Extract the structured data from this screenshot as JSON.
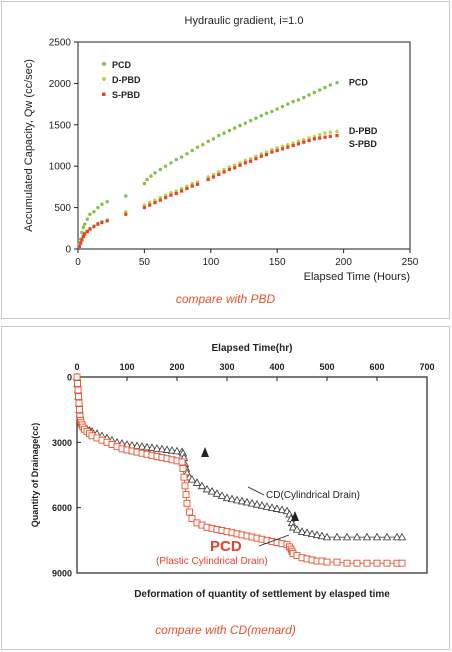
{
  "captions": {
    "top": "compare with PBD",
    "bottom": "compare with CD(menard)"
  },
  "chart_data": [
    {
      "type": "scatter",
      "title": "Hydraulic gradient,  i=1.0",
      "xlabel": "Elapsed Time (Hours)",
      "ylabel": "Accumulated Capacity, Qw  (cc/sec)",
      "xlim": [
        0,
        250
      ],
      "ylim": [
        0,
        2500
      ],
      "xticks": [
        0,
        50,
        100,
        150,
        200,
        250
      ],
      "yticks": [
        0,
        500,
        1000,
        1500,
        2000,
        2500
      ],
      "grid": false,
      "legend": "top-left",
      "series": [
        {
          "name": "PCD",
          "color": "#7cc242",
          "x": [
            1,
            2,
            3,
            4,
            5,
            7,
            9,
            12,
            15,
            18,
            22,
            36,
            50,
            52,
            55,
            58,
            62,
            66,
            70,
            74,
            78,
            82,
            86,
            90,
            94,
            98,
            102,
            106,
            110,
            114,
            118,
            122,
            126,
            130,
            134,
            138,
            142,
            146,
            150,
            154,
            158,
            162,
            166,
            170,
            174,
            178,
            182,
            186,
            190,
            195
          ],
          "y": [
            60,
            120,
            200,
            260,
            300,
            360,
            420,
            450,
            500,
            540,
            570,
            640,
            790,
            840,
            880,
            920,
            960,
            1000,
            1040,
            1080,
            1110,
            1150,
            1190,
            1230,
            1260,
            1300,
            1330,
            1370,
            1400,
            1430,
            1460,
            1490,
            1520,
            1550,
            1580,
            1610,
            1640,
            1660,
            1690,
            1720,
            1750,
            1780,
            1800,
            1830,
            1860,
            1890,
            1920,
            1950,
            1980,
            2010
          ]
        },
        {
          "name": "D-PBD",
          "color": "#b9d43a",
          "x": [
            1,
            2,
            3,
            4,
            5,
            7,
            9,
            12,
            15,
            18,
            22,
            36,
            50,
            54,
            58,
            62,
            66,
            70,
            74,
            78,
            82,
            86,
            90,
            98,
            102,
            106,
            110,
            114,
            118,
            122,
            126,
            130,
            134,
            138,
            142,
            146,
            150,
            154,
            158,
            162,
            166,
            170,
            174,
            178,
            182,
            186,
            190,
            195
          ],
          "y": [
            40,
            80,
            120,
            160,
            190,
            220,
            250,
            280,
            310,
            330,
            350,
            450,
            530,
            560,
            590,
            620,
            650,
            680,
            700,
            730,
            760,
            790,
            810,
            870,
            900,
            930,
            960,
            990,
            1010,
            1040,
            1070,
            1090,
            1120,
            1150,
            1170,
            1200,
            1220,
            1240,
            1260,
            1280,
            1300,
            1320,
            1340,
            1360,
            1380,
            1400,
            1410,
            1420
          ]
        },
        {
          "name": "S-PBD",
          "color": "#e8402c",
          "x": [
            1,
            2,
            3,
            4,
            5,
            7,
            9,
            12,
            15,
            18,
            22,
            36,
            50,
            54,
            58,
            62,
            66,
            70,
            74,
            78,
            82,
            86,
            90,
            98,
            102,
            106,
            110,
            114,
            118,
            122,
            126,
            130,
            134,
            138,
            142,
            146,
            150,
            154,
            158,
            162,
            166,
            170,
            174,
            178,
            182,
            186,
            190,
            195
          ],
          "y": [
            30,
            70,
            110,
            150,
            180,
            210,
            240,
            270,
            300,
            320,
            340,
            420,
            500,
            530,
            560,
            590,
            620,
            650,
            670,
            700,
            730,
            760,
            780,
            840,
            870,
            900,
            930,
            960,
            980,
            1010,
            1040,
            1060,
            1090,
            1120,
            1140,
            1170,
            1190,
            1210,
            1230,
            1250,
            1270,
            1290,
            1310,
            1330,
            1340,
            1350,
            1360,
            1370
          ]
        }
      ],
      "annotations": [
        {
          "text": "PCD",
          "x": 204,
          "y": 2020
        },
        {
          "text": "D-PBD",
          "x": 204,
          "y": 1440
        },
        {
          "text": "S-PBD",
          "x": 204,
          "y": 1280
        }
      ]
    },
    {
      "type": "line",
      "title": "Elapsed Time(hr)",
      "xlabel": "Deformation of quantity of settlement by elasped time",
      "ylabel": "Quantity of Drainage(cc)",
      "xlim": [
        0,
        700
      ],
      "ylim": [
        0,
        9000
      ],
      "y_inverted": true,
      "x_axis_position": "top",
      "xticks": [
        0,
        100,
        200,
        300,
        400,
        500,
        600,
        700
      ],
      "yticks": [
        0,
        3000,
        6000,
        9000
      ],
      "grid": false,
      "series": [
        {
          "name": "CD(Cylindrical Drain)",
          "color": "#333333",
          "marker": "triangle",
          "x": [
            0,
            1,
            2,
            3,
            4,
            5,
            6,
            7,
            8,
            10,
            12,
            15,
            20,
            25,
            30,
            40,
            50,
            60,
            70,
            80,
            90,
            100,
            110,
            120,
            130,
            140,
            150,
            160,
            170,
            180,
            190,
            200,
            210,
            212,
            214,
            216,
            218,
            220,
            225,
            230,
            240,
            250,
            260,
            270,
            280,
            290,
            300,
            310,
            320,
            330,
            340,
            350,
            360,
            370,
            380,
            390,
            400,
            410,
            420,
            425,
            428,
            430,
            432,
            440,
            450,
            460,
            470,
            480,
            490,
            500,
            520,
            540,
            560,
            580,
            600,
            620,
            640,
            650
          ],
          "y": [
            0,
            300,
            600,
            900,
            1200,
            1500,
            1700,
            1900,
            2000,
            2100,
            2200,
            2300,
            2400,
            2450,
            2500,
            2600,
            2700,
            2800,
            2900,
            3000,
            3050,
            3100,
            3130,
            3160,
            3190,
            3220,
            3250,
            3280,
            3310,
            3340,
            3370,
            3400,
            3430,
            3500,
            3700,
            4000,
            4200,
            4400,
            4600,
            4700,
            4850,
            5000,
            5150,
            5250,
            5350,
            5450,
            5550,
            5600,
            5650,
            5700,
            5750,
            5800,
            5850,
            5900,
            5950,
            6000,
            6050,
            6100,
            6150,
            6300,
            6500,
            6700,
            6900,
            7000,
            7100,
            7150,
            7200,
            7250,
            7300,
            7350,
            7350,
            7350,
            7350,
            7350,
            7350,
            7350,
            7350,
            7350
          ]
        },
        {
          "name": "PCD",
          "color": "#e8502c",
          "marker": "square",
          "x": [
            0,
            1,
            2,
            3,
            4,
            5,
            6,
            7,
            8,
            10,
            12,
            15,
            20,
            25,
            30,
            40,
            50,
            60,
            70,
            80,
            90,
            100,
            110,
            120,
            130,
            140,
            150,
            160,
            170,
            180,
            190,
            200,
            210,
            212,
            214,
            216,
            218,
            220,
            225,
            230,
            240,
            250,
            260,
            270,
            280,
            290,
            300,
            310,
            320,
            330,
            340,
            350,
            360,
            370,
            380,
            390,
            400,
            410,
            420,
            425,
            428,
            430,
            432,
            440,
            450,
            460,
            470,
            480,
            490,
            500,
            520,
            540,
            560,
            580,
            600,
            620,
            640,
            650
          ],
          "y": [
            0,
            300,
            600,
            900,
            1200,
            1500,
            1800,
            2000,
            2100,
            2200,
            2300,
            2400,
            2500,
            2600,
            2700,
            2800,
            2900,
            3000,
            3100,
            3200,
            3300,
            3350,
            3400,
            3450,
            3500,
            3550,
            3600,
            3650,
            3700,
            3750,
            3800,
            3850,
            3900,
            4200,
            4600,
            5000,
            5400,
            5800,
            6200,
            6500,
            6700,
            6800,
            6900,
            6950,
            7000,
            7050,
            7100,
            7150,
            7200,
            7250,
            7300,
            7350,
            7400,
            7450,
            7500,
            7550,
            7600,
            7650,
            7700,
            7800,
            7900,
            8000,
            8100,
            8200,
            8300,
            8350,
            8400,
            8450,
            8450,
            8500,
            8500,
            8550,
            8550,
            8550,
            8550,
            8550,
            8550,
            8550
          ]
        }
      ],
      "annotations": [
        {
          "text": "CD(Cylindrical Drain)",
          "color": "#222222"
        },
        {
          "text": "PCD",
          "color": "#e8402c"
        },
        {
          "text": "(Plastic Cylindrical Drain)",
          "color": "#e8402c"
        }
      ]
    }
  ]
}
